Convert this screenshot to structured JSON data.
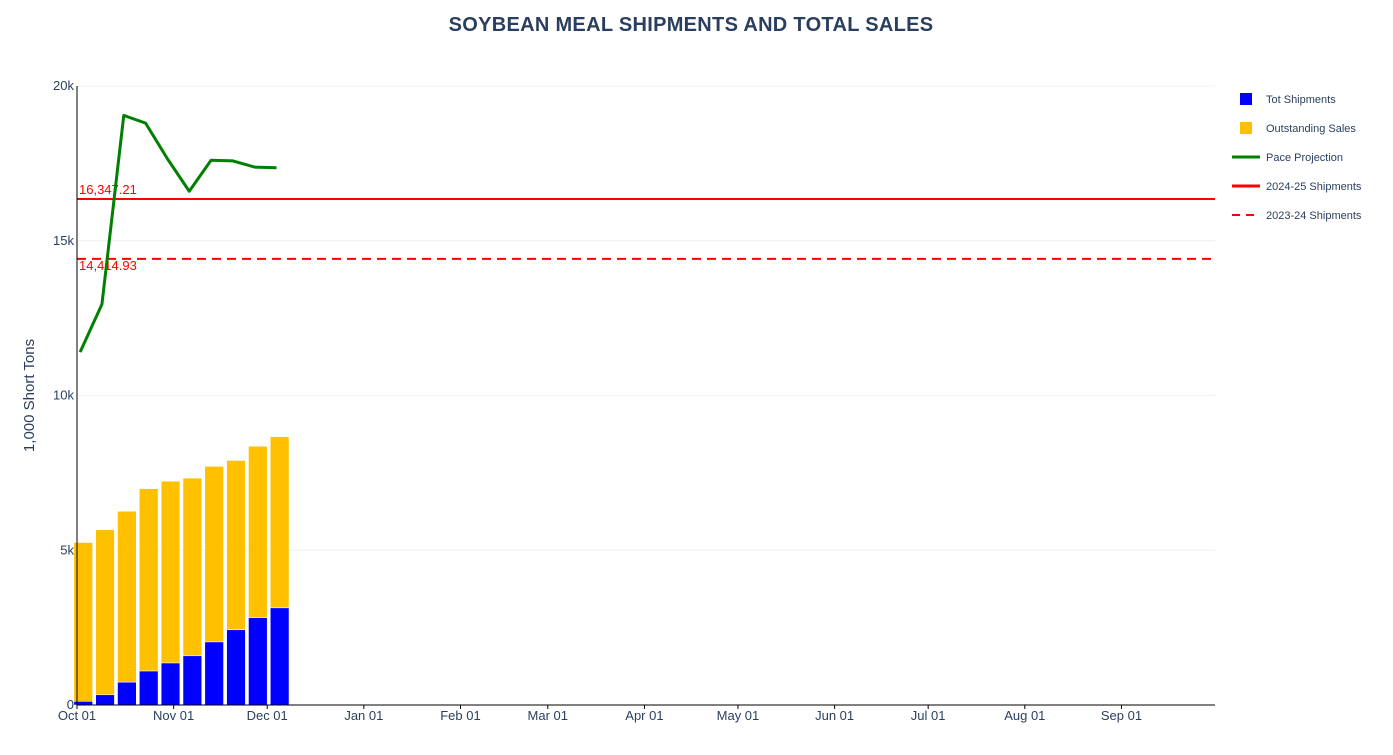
{
  "chart_data": {
    "type": "bar",
    "title": "SOYBEAN MEAL SHIPMENTS AND TOTAL SALES",
    "xlabel": "",
    "ylabel": "1,000 Short Tons",
    "ylim": [
      0,
      20000
    ],
    "xlim": [
      "2024-10-01",
      "2025-09-30"
    ],
    "x_ticks": [
      "Oct 01",
      "Nov 01",
      "Dec 01",
      "Jan 01",
      "Feb 01",
      "Mar 01",
      "Apr 01",
      "May 01",
      "Jun 01",
      "Jul 01",
      "Aug 01",
      "Sep 01"
    ],
    "y_ticks": [
      {
        "value": 0,
        "label": "0"
      },
      {
        "value": 5000,
        "label": "5k"
      },
      {
        "value": 10000,
        "label": "10k"
      },
      {
        "value": 15000,
        "label": "15k"
      },
      {
        "value": 20000,
        "label": "20k"
      }
    ],
    "grid": true,
    "legend_position": "right",
    "bar_mode": "stack",
    "x": [
      "2024-10-03",
      "2024-10-10",
      "2024-10-17",
      "2024-10-24",
      "2024-10-31",
      "2024-11-07",
      "2024-11-14",
      "2024-11-21",
      "2024-11-28",
      "2024-12-05"
    ],
    "series": [
      {
        "name": "Tot Shipments",
        "type": "bar",
        "color": "#0000ff",
        "values": [
          120,
          330,
          740,
          1100,
          1360,
          1590,
          2040,
          2430,
          2820,
          3140
        ]
      },
      {
        "name": "Outstanding Sales",
        "type": "bar",
        "color": "#ffc000",
        "values": [
          5130,
          5330,
          5520,
          5890,
          5870,
          5740,
          5670,
          5470,
          5540,
          5530
        ]
      },
      {
        "name": "Pace Projection",
        "type": "line",
        "color": "#008000",
        "x": [
          "2024-10-02",
          "2024-10-09",
          "2024-10-16",
          "2024-10-23",
          "2024-10-30",
          "2024-11-06",
          "2024-11-13",
          "2024-11-20",
          "2024-11-27",
          "2024-12-04"
        ],
        "values": [
          11400,
          12950,
          19050,
          18800,
          17650,
          16600,
          17600,
          17580,
          17380,
          17360
        ]
      }
    ],
    "reference_lines": [
      {
        "name": "2024-25 Shipments",
        "value": 16347.21,
        "label": "16,347.21",
        "color": "#ff0000",
        "dash": "solid"
      },
      {
        "name": "2023-24 Shipments",
        "value": 14414.93,
        "label": "14,414.93",
        "color": "#ff0000",
        "dash": "dash"
      }
    ]
  }
}
